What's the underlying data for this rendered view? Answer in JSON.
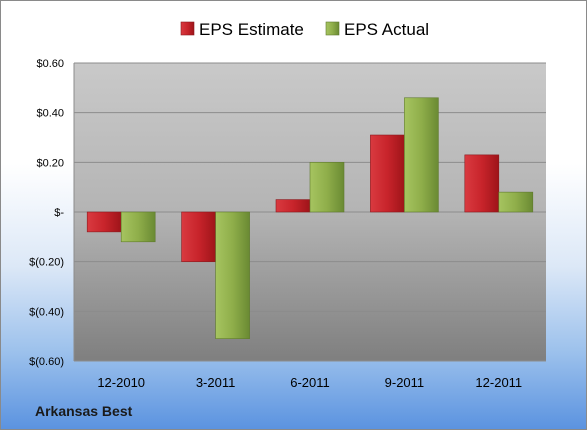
{
  "chart_data": {
    "type": "bar",
    "title": "",
    "categories": [
      "12-2010",
      "3-2011",
      "6-2011",
      "9-2011",
      "12-2011"
    ],
    "series": [
      {
        "name": "EPS Estimate",
        "color": "#c8242b",
        "values": [
          -0.08,
          -0.2,
          0.05,
          0.31,
          0.23
        ]
      },
      {
        "name": "EPS Actual",
        "color": "#8fae4a",
        "values": [
          -0.12,
          -0.51,
          0.2,
          0.46,
          0.08
        ]
      }
    ],
    "ylim": [
      -0.6,
      0.6
    ],
    "yticks": [
      0.6,
      0.4,
      0.2,
      0,
      -0.2,
      -0.4,
      -0.6
    ],
    "ytick_labels": [
      "$0.60",
      "$0.40",
      "$0.20",
      "$-",
      "$(0.20)",
      "$(0.40)",
      "$(0.60)"
    ],
    "xlabel": "",
    "ylabel": "",
    "grid": true,
    "legend_position": "top"
  },
  "footer": {
    "company": "Arkansas Best"
  }
}
